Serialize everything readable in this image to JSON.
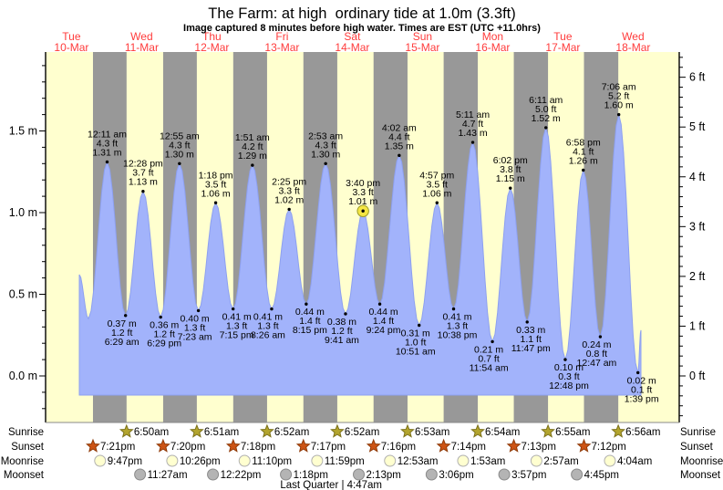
{
  "header": {
    "title": "The Farm: at high  ordinary tide at 1.0m (3.3ft)",
    "subtitle": "Image captured 8 minutes before high water. Times are EST (UTC +11.0hrs)"
  },
  "day_labels": [
    {
      "name": "Tue",
      "date": "10-Mar"
    },
    {
      "name": "Wed",
      "date": "11-Mar"
    },
    {
      "name": "Thu",
      "date": "12-Mar"
    },
    {
      "name": "Fri",
      "date": "13-Mar"
    },
    {
      "name": "Sat",
      "date": "14-Mar"
    },
    {
      "name": "Sun",
      "date": "15-Mar"
    },
    {
      "name": "Mon",
      "date": "16-Mar"
    },
    {
      "name": "Tue",
      "date": "17-Mar"
    },
    {
      "name": "Wed",
      "date": "18-Mar"
    }
  ],
  "axis": {
    "left_ticks": [
      {
        "v": 0.0,
        "label": "0.0 m"
      },
      {
        "v": 0.5,
        "label": "0.5 m"
      },
      {
        "v": 1.0,
        "label": "1.0 m"
      },
      {
        "v": 1.5,
        "label": "1.5 m"
      }
    ],
    "right_ticks": [
      {
        "v": 0,
        "label": "0 ft"
      },
      {
        "v": 1,
        "label": "1 ft"
      },
      {
        "v": 2,
        "label": "2 ft"
      },
      {
        "v": 3,
        "label": "3 ft"
      },
      {
        "v": 4,
        "label": "4 ft"
      },
      {
        "v": 5,
        "label": "5 ft"
      },
      {
        "v": 6,
        "label": "6 ft"
      }
    ]
  },
  "chart_data": {
    "type": "area",
    "title": "The Farm: at high  ordinary tide at 1.0m (3.3ft)",
    "x_days": [
      "Tue 10-Mar",
      "Wed 11-Mar",
      "Thu 12-Mar",
      "Fri 13-Mar",
      "Sat 14-Mar",
      "Sun 15-Mar",
      "Mon 16-Mar",
      "Tue 17-Mar",
      "Wed 18-Mar"
    ],
    "ylim_m": [
      -0.25,
      1.98
    ],
    "series_start": {
      "d": 0,
      "t": "2:41pm",
      "m": 0.62
    },
    "leading_low": {
      "d": 0,
      "t": "5:48pm",
      "m": 0.35
    },
    "series_end": {
      "d": 8,
      "t": "2:40pm",
      "m": 0.28
    },
    "current_marker_index": 14,
    "tide_events": [
      {
        "d": 1,
        "t": "12:11am",
        "type": "high",
        "m": 1.31,
        "ft": 4.3
      },
      {
        "d": 1,
        "t": "6:29am",
        "type": "low",
        "m": 0.37,
        "ft": 1.2
      },
      {
        "d": 1,
        "t": "12:28pm",
        "type": "high",
        "m": 1.13,
        "ft": 3.7
      },
      {
        "d": 1,
        "t": "6:29pm",
        "type": "low",
        "m": 0.36,
        "ft": 1.2
      },
      {
        "d": 2,
        "t": "12:55am",
        "type": "high",
        "m": 1.3,
        "ft": 4.3
      },
      {
        "d": 2,
        "t": "7:23am",
        "type": "low",
        "m": 0.4,
        "ft": 1.3
      },
      {
        "d": 2,
        "t": "1:18pm",
        "type": "high",
        "m": 1.06,
        "ft": 3.5
      },
      {
        "d": 2,
        "t": "7:15pm",
        "type": "low",
        "m": 0.41,
        "ft": 1.3
      },
      {
        "d": 3,
        "t": "1:51am",
        "type": "high",
        "m": 1.29,
        "ft": 4.2
      },
      {
        "d": 3,
        "t": "8:26am",
        "type": "low",
        "m": 0.41,
        "ft": 1.3
      },
      {
        "d": 3,
        "t": "2:25pm",
        "type": "high",
        "m": 1.02,
        "ft": 3.3
      },
      {
        "d": 3,
        "t": "8:15pm",
        "type": "low",
        "m": 0.44,
        "ft": 1.4
      },
      {
        "d": 4,
        "t": "2:53am",
        "type": "high",
        "m": 1.3,
        "ft": 4.3
      },
      {
        "d": 4,
        "t": "9:41am",
        "type": "low",
        "m": 0.38,
        "ft": 1.2
      },
      {
        "d": 4,
        "t": "3:40pm",
        "type": "high",
        "m": 1.01,
        "ft": 3.3
      },
      {
        "d": 4,
        "t": "9:24pm",
        "type": "low",
        "m": 0.44,
        "ft": 1.4
      },
      {
        "d": 5,
        "t": "4:02am",
        "type": "high",
        "m": 1.35,
        "ft": 4.4
      },
      {
        "d": 5,
        "t": "10:51am",
        "type": "low",
        "m": 0.31,
        "ft": 1.0
      },
      {
        "d": 5,
        "t": "4:57pm",
        "type": "high",
        "m": 1.06,
        "ft": 3.5
      },
      {
        "d": 5,
        "t": "10:38pm",
        "type": "low",
        "m": 0.41,
        "ft": 1.3
      },
      {
        "d": 6,
        "t": "5:11am",
        "type": "high",
        "m": 1.43,
        "ft": 4.7
      },
      {
        "d": 6,
        "t": "11:54am",
        "type": "low",
        "m": 0.21,
        "ft": 0.7
      },
      {
        "d": 6,
        "t": "6:02pm",
        "type": "high",
        "m": 1.15,
        "ft": 3.8
      },
      {
        "d": 6,
        "t": "11:47pm",
        "type": "low",
        "m": 0.33,
        "ft": 1.1
      },
      {
        "d": 7,
        "t": "6:11am",
        "type": "high",
        "m": 1.52,
        "ft": 5.0
      },
      {
        "d": 7,
        "t": "12:48pm",
        "type": "low",
        "m": 0.1,
        "ft": 0.3
      },
      {
        "d": 7,
        "t": "6:58pm",
        "type": "high",
        "m": 1.26,
        "ft": 4.1
      },
      {
        "d": 8,
        "t": "12:47am",
        "type": "low",
        "m": 0.24,
        "ft": 0.8
      },
      {
        "d": 8,
        "t": "7:06am",
        "type": "high",
        "m": 1.6,
        "ft": 5.2
      },
      {
        "d": 8,
        "t": "1:39pm",
        "type": "low",
        "m": 0.02,
        "ft": 0.1
      }
    ]
  },
  "almanac": {
    "rows": [
      {
        "key": "sunrise",
        "label": "Sunrise",
        "icon": "sunrise-star-icon",
        "entries": [
          {
            "d": 1,
            "t": "6:50am"
          },
          {
            "d": 2,
            "t": "6:51am"
          },
          {
            "d": 3,
            "t": "6:52am"
          },
          {
            "d": 4,
            "t": "6:52am"
          },
          {
            "d": 5,
            "t": "6:53am"
          },
          {
            "d": 6,
            "t": "6:54am"
          },
          {
            "d": 7,
            "t": "6:55am"
          },
          {
            "d": 8,
            "t": "6:56am"
          }
        ]
      },
      {
        "key": "sunset",
        "label": "Sunset",
        "icon": "sunset-star-icon",
        "entries": [
          {
            "d": 0,
            "t": "7:21pm"
          },
          {
            "d": 1,
            "t": "7:20pm"
          },
          {
            "d": 2,
            "t": "7:18pm"
          },
          {
            "d": 3,
            "t": "7:17pm"
          },
          {
            "d": 4,
            "t": "7:16pm"
          },
          {
            "d": 5,
            "t": "7:14pm"
          },
          {
            "d": 6,
            "t": "7:13pm"
          },
          {
            "d": 7,
            "t": "7:12pm"
          }
        ]
      },
      {
        "key": "moonrise",
        "label": "Moonrise",
        "icon": "moonrise-circle-icon",
        "entries": [
          {
            "d": 0,
            "t": "9:47pm"
          },
          {
            "d": 1,
            "t": "10:26pm"
          },
          {
            "d": 2,
            "t": "11:10pm"
          },
          {
            "d": 3,
            "t": "11:59pm"
          },
          {
            "d": 5,
            "t": "12:53am"
          },
          {
            "d": 6,
            "t": "1:53am"
          },
          {
            "d": 7,
            "t": "2:57am"
          },
          {
            "d": 8,
            "t": "4:04am"
          }
        ]
      },
      {
        "key": "moonset",
        "label": "Moonset",
        "icon": "moonset-circle-icon",
        "entries": [
          {
            "d": 1,
            "t": "11:27am"
          },
          {
            "d": 2,
            "t": "12:22pm"
          },
          {
            "d": 3,
            "t": "1:18pm"
          },
          {
            "d": 4,
            "t": "2:13pm"
          },
          {
            "d": 5,
            "t": "3:06pm"
          },
          {
            "d": 6,
            "t": "3:57pm"
          },
          {
            "d": 7,
            "t": "4:45pm"
          }
        ]
      }
    ],
    "moon_phase": "Last Quarter | 4:47am",
    "moon_phase_at": {
      "d": 4,
      "t": "4:47am"
    }
  },
  "colors": {
    "day_bg": "#FFFFCF",
    "night_band": "#989898",
    "tide_fill": "#A2B3FB",
    "tide_stroke": "#8DA0F0",
    "day_label_red": "#FF3B3B",
    "frame": "#000000",
    "marker_fill": "#F5E642",
    "marker_stroke": "#999926",
    "sunrise_icon": "#B3A52E",
    "sunrise_icon_stroke": "#7C711A",
    "sunset_icon": "#CD5414",
    "sunset_icon_stroke": "#8F3A08",
    "moonrise_icon": "#FFFFD0",
    "moonrise_icon_stroke": "#AFAFAF",
    "moonset_icon": "#B4B4B4",
    "moonset_icon_stroke": "#8A8A8A"
  }
}
